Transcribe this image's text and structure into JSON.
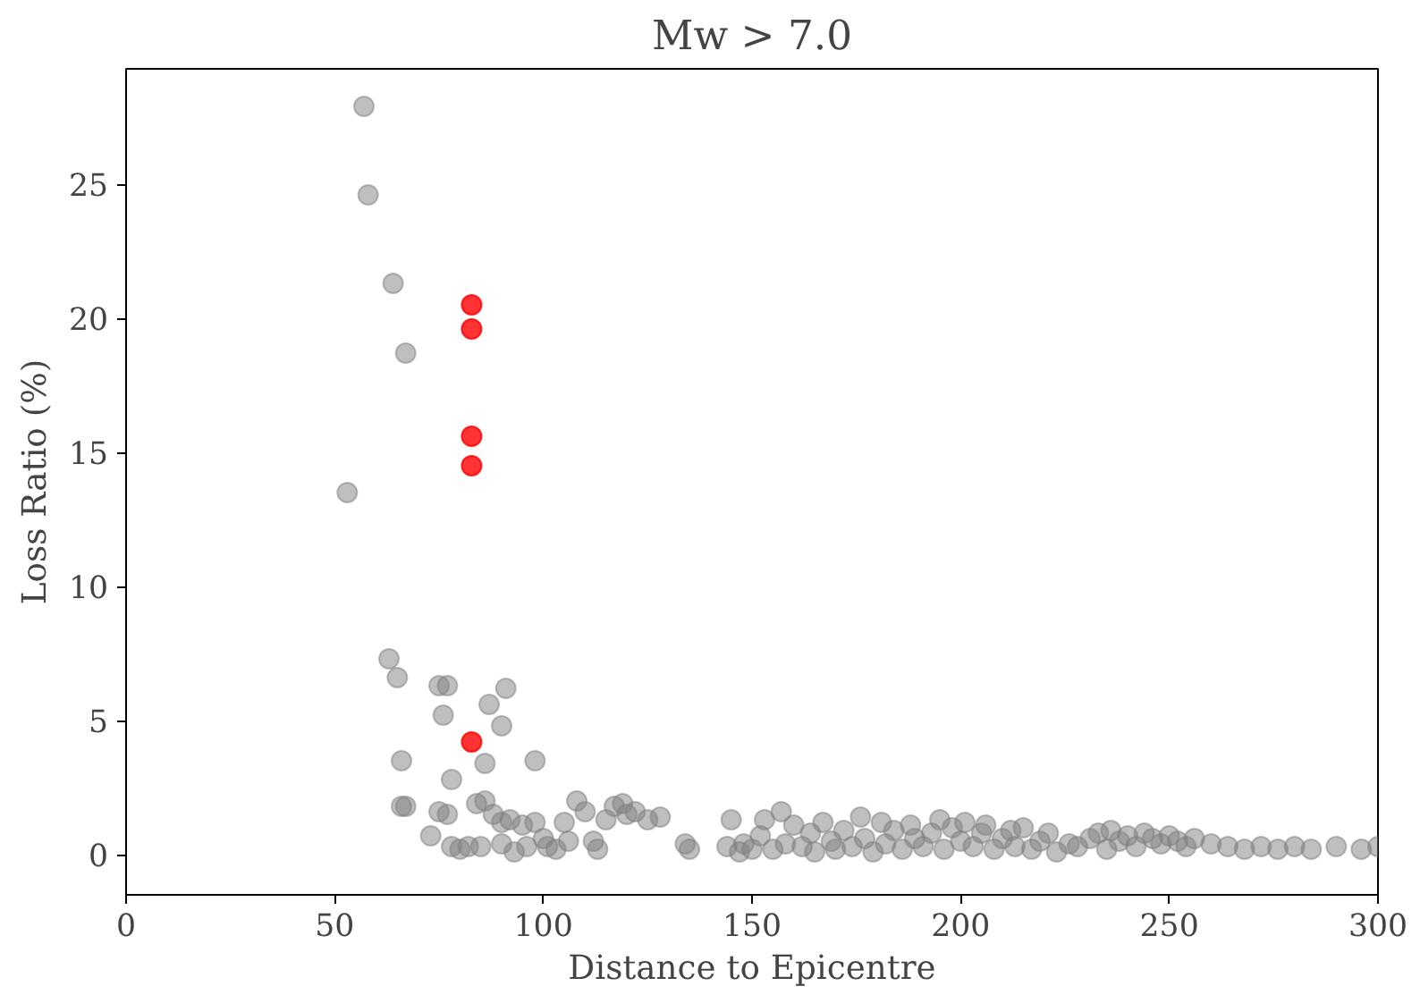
{
  "chart_data": {
    "type": "scatter",
    "title": "Mw > 7.0",
    "xlabel": "Distance to Epicentre",
    "ylabel": "Loss Ratio (%)",
    "xlim": [
      0,
      300
    ],
    "ylim": [
      -1.5,
      29.3
    ],
    "xticks": [
      0,
      50,
      100,
      150,
      200,
      250,
      300
    ],
    "yticks": [
      0,
      5,
      10,
      15,
      20,
      25
    ],
    "grid": false,
    "marker": "circle",
    "series": [
      {
        "color": "#808080",
        "x": [
          57,
          58,
          64,
          67,
          53,
          63,
          65,
          75,
          77,
          76,
          87,
          91,
          90,
          66,
          86,
          98,
          78,
          66,
          67,
          73,
          75,
          77,
          78,
          80,
          82,
          84,
          85,
          86,
          88,
          90,
          90,
          92,
          93,
          95,
          96,
          98,
          100,
          101,
          103,
          105,
          106,
          108,
          110,
          112,
          113,
          115,
          117,
          119,
          120,
          122,
          125,
          128,
          134,
          135,
          144,
          145,
          147,
          148,
          150,
          152,
          153,
          155,
          157,
          158,
          160,
          162,
          164,
          165,
          167,
          169,
          170,
          172,
          174,
          176,
          177,
          179,
          181,
          182,
          184,
          186,
          188,
          189,
          191,
          193,
          195,
          196,
          198,
          200,
          201,
          203,
          205,
          206,
          208,
          210,
          212,
          213,
          215,
          217,
          219,
          221,
          223,
          226,
          228,
          231,
          233,
          235,
          236,
          238,
          240,
          242,
          244,
          246,
          248,
          250,
          252,
          254,
          256,
          260,
          264,
          268,
          272,
          276,
          280,
          284,
          290,
          296,
          300
        ],
        "values": [
          27.9,
          24.6,
          21.3,
          18.7,
          13.5,
          7.3,
          6.6,
          6.3,
          6.3,
          5.2,
          5.6,
          6.2,
          4.8,
          3.5,
          3.4,
          3.5,
          2.8,
          1.8,
          1.8,
          0.7,
          1.6,
          1.5,
          0.3,
          0.2,
          0.3,
          1.9,
          0.3,
          2.0,
          1.5,
          1.2,
          0.4,
          1.3,
          0.1,
          1.1,
          0.3,
          1.2,
          0.6,
          0.3,
          0.2,
          1.2,
          0.5,
          2.0,
          1.6,
          0.5,
          0.2,
          1.3,
          1.8,
          1.9,
          1.5,
          1.6,
          1.3,
          1.4,
          0.4,
          0.2,
          0.3,
          1.3,
          0.1,
          0.4,
          0.2,
          0.7,
          1.3,
          0.2,
          1.6,
          0.4,
          1.1,
          0.3,
          0.8,
          0.1,
          1.2,
          0.5,
          0.2,
          0.9,
          0.3,
          1.4,
          0.6,
          0.1,
          1.2,
          0.4,
          0.9,
          0.2,
          1.1,
          0.6,
          0.3,
          0.8,
          1.3,
          0.2,
          1.0,
          0.5,
          1.2,
          0.3,
          0.8,
          1.1,
          0.2,
          0.6,
          0.9,
          0.3,
          1.0,
          0.2,
          0.5,
          0.8,
          0.1,
          0.4,
          0.3,
          0.6,
          0.8,
          0.2,
          0.9,
          0.5,
          0.7,
          0.3,
          0.8,
          0.6,
          0.4,
          0.7,
          0.5,
          0.3,
          0.6,
          0.4,
          0.3,
          0.2,
          0.3,
          0.2,
          0.3,
          0.2,
          0.3,
          0.2,
          0.3
        ]
      },
      {
        "color": "#ff0000",
        "x": [
          82.8,
          82.8,
          82.8,
          82.8,
          82.8
        ],
        "values": [
          20.5,
          19.6,
          15.6,
          14.5,
          4.2
        ]
      }
    ]
  }
}
